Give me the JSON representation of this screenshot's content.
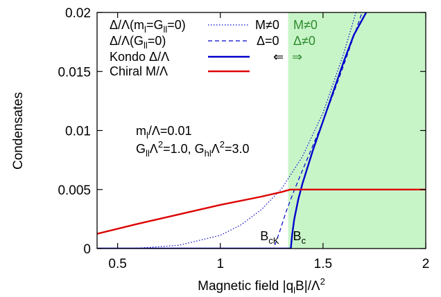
{
  "chart_data": {
    "type": "line",
    "xlabel": {
      "main": "Magnetic field |q",
      "sub": "l",
      "mid": "B|/Λ",
      "sup": "2"
    },
    "ylabel": "Condensates",
    "xlim": [
      0.4,
      2.0
    ],
    "ylim": [
      0,
      0.02
    ],
    "x_ticks": [
      0.5,
      1.0,
      1.5,
      2.0
    ],
    "x_tick_labels": [
      "0.5",
      "1",
      "1.5",
      "2"
    ],
    "y_ticks": [
      0,
      0.005,
      0.01,
      0.015,
      0.02
    ],
    "y_tick_labels": [
      "0",
      "0.005",
      "0.01",
      "0.015",
      "0.02"
    ],
    "grid": false,
    "shaded_region": {
      "x_from": 1.33,
      "x_to": 2.0,
      "color": "#c8f5c8"
    },
    "series": [
      {
        "name": "Δ/Λ(m=G=0)",
        "legend_parts": {
          "pre": "Δ/Λ(m",
          "sub1": "l",
          "mid": "=G",
          "sub2": "ll",
          "post": "=0)"
        },
        "color": "#0000cc",
        "style": "dotted",
        "x": [
          0.4,
          0.6,
          0.8,
          1.0,
          1.1,
          1.2,
          1.3,
          1.4,
          1.5,
          1.6,
          1.66
        ],
        "y": [
          0.0,
          3e-05,
          0.00028,
          0.00112,
          0.002,
          0.0033,
          0.0051,
          0.0078,
          0.0115,
          0.0165,
          0.02
        ]
      },
      {
        "name": "Δ/Λ(G=0)",
        "legend_parts": {
          "pre": "Δ/Λ(G",
          "sub1": "ll",
          "post": "=0)"
        },
        "color": "#0000cc",
        "style": "dashed",
        "x": [
          0.4,
          1.26,
          1.29,
          1.32,
          1.35,
          1.38,
          1.45,
          1.5,
          1.55,
          1.6,
          1.69
        ],
        "y": [
          0.0,
          0.0,
          0.0015,
          0.0031,
          0.0045,
          0.0058,
          0.0087,
          0.0108,
          0.0131,
          0.0155,
          0.02
        ]
      },
      {
        "name": "Kondo Δ/Λ",
        "color": "#0000cc",
        "style": "solid",
        "x": [
          0.4,
          1.343,
          1.35,
          1.36,
          1.38,
          1.4,
          1.45,
          1.5,
          1.55,
          1.6,
          1.65,
          1.71
        ],
        "y": [
          0.0,
          0.0,
          0.0012,
          0.0025,
          0.0042,
          0.0055,
          0.0083,
          0.0108,
          0.0133,
          0.0158,
          0.0181,
          0.02
        ]
      },
      {
        "name": "Chiral M/Λ",
        "color": "#dd0000",
        "style": "solid",
        "x": [
          0.4,
          0.6,
          0.8,
          1.0,
          1.2,
          1.3,
          1.34,
          2.0
        ],
        "y": [
          0.00125,
          0.0021,
          0.0029,
          0.0037,
          0.0044,
          0.0048,
          0.005,
          0.005
        ]
      }
    ],
    "legend_placement": "top-left",
    "phase_labels": {
      "m_nonzero": "M≠0",
      "delta_zero": "Δ=0",
      "arrow_left": "⇐",
      "m_nonzero_green": "M≠0",
      "delta_nonzero_green": "Δ≠0",
      "arrow_right": "⇒"
    },
    "annotations": {
      "param1": {
        "pre": "m",
        "sub": "l",
        "post": "/Λ=0.01"
      },
      "param2": {
        "a_pre": "G",
        "a_sub": "ll",
        "a_mid": "Λ",
        "a_sup": "2",
        "a_post": "=1.0, ",
        "b_pre": "G",
        "b_sub": "hl",
        "b_mid": "Λ",
        "b_sup": "2",
        "b_post": "=3.0"
      },
      "bck": {
        "pre": "B",
        "sub": "cK",
        "x": 1.24,
        "y": 0.0007
      },
      "bc": {
        "pre": "B",
        "sub": "c",
        "x": 1.385,
        "y": 0.0007
      }
    }
  }
}
